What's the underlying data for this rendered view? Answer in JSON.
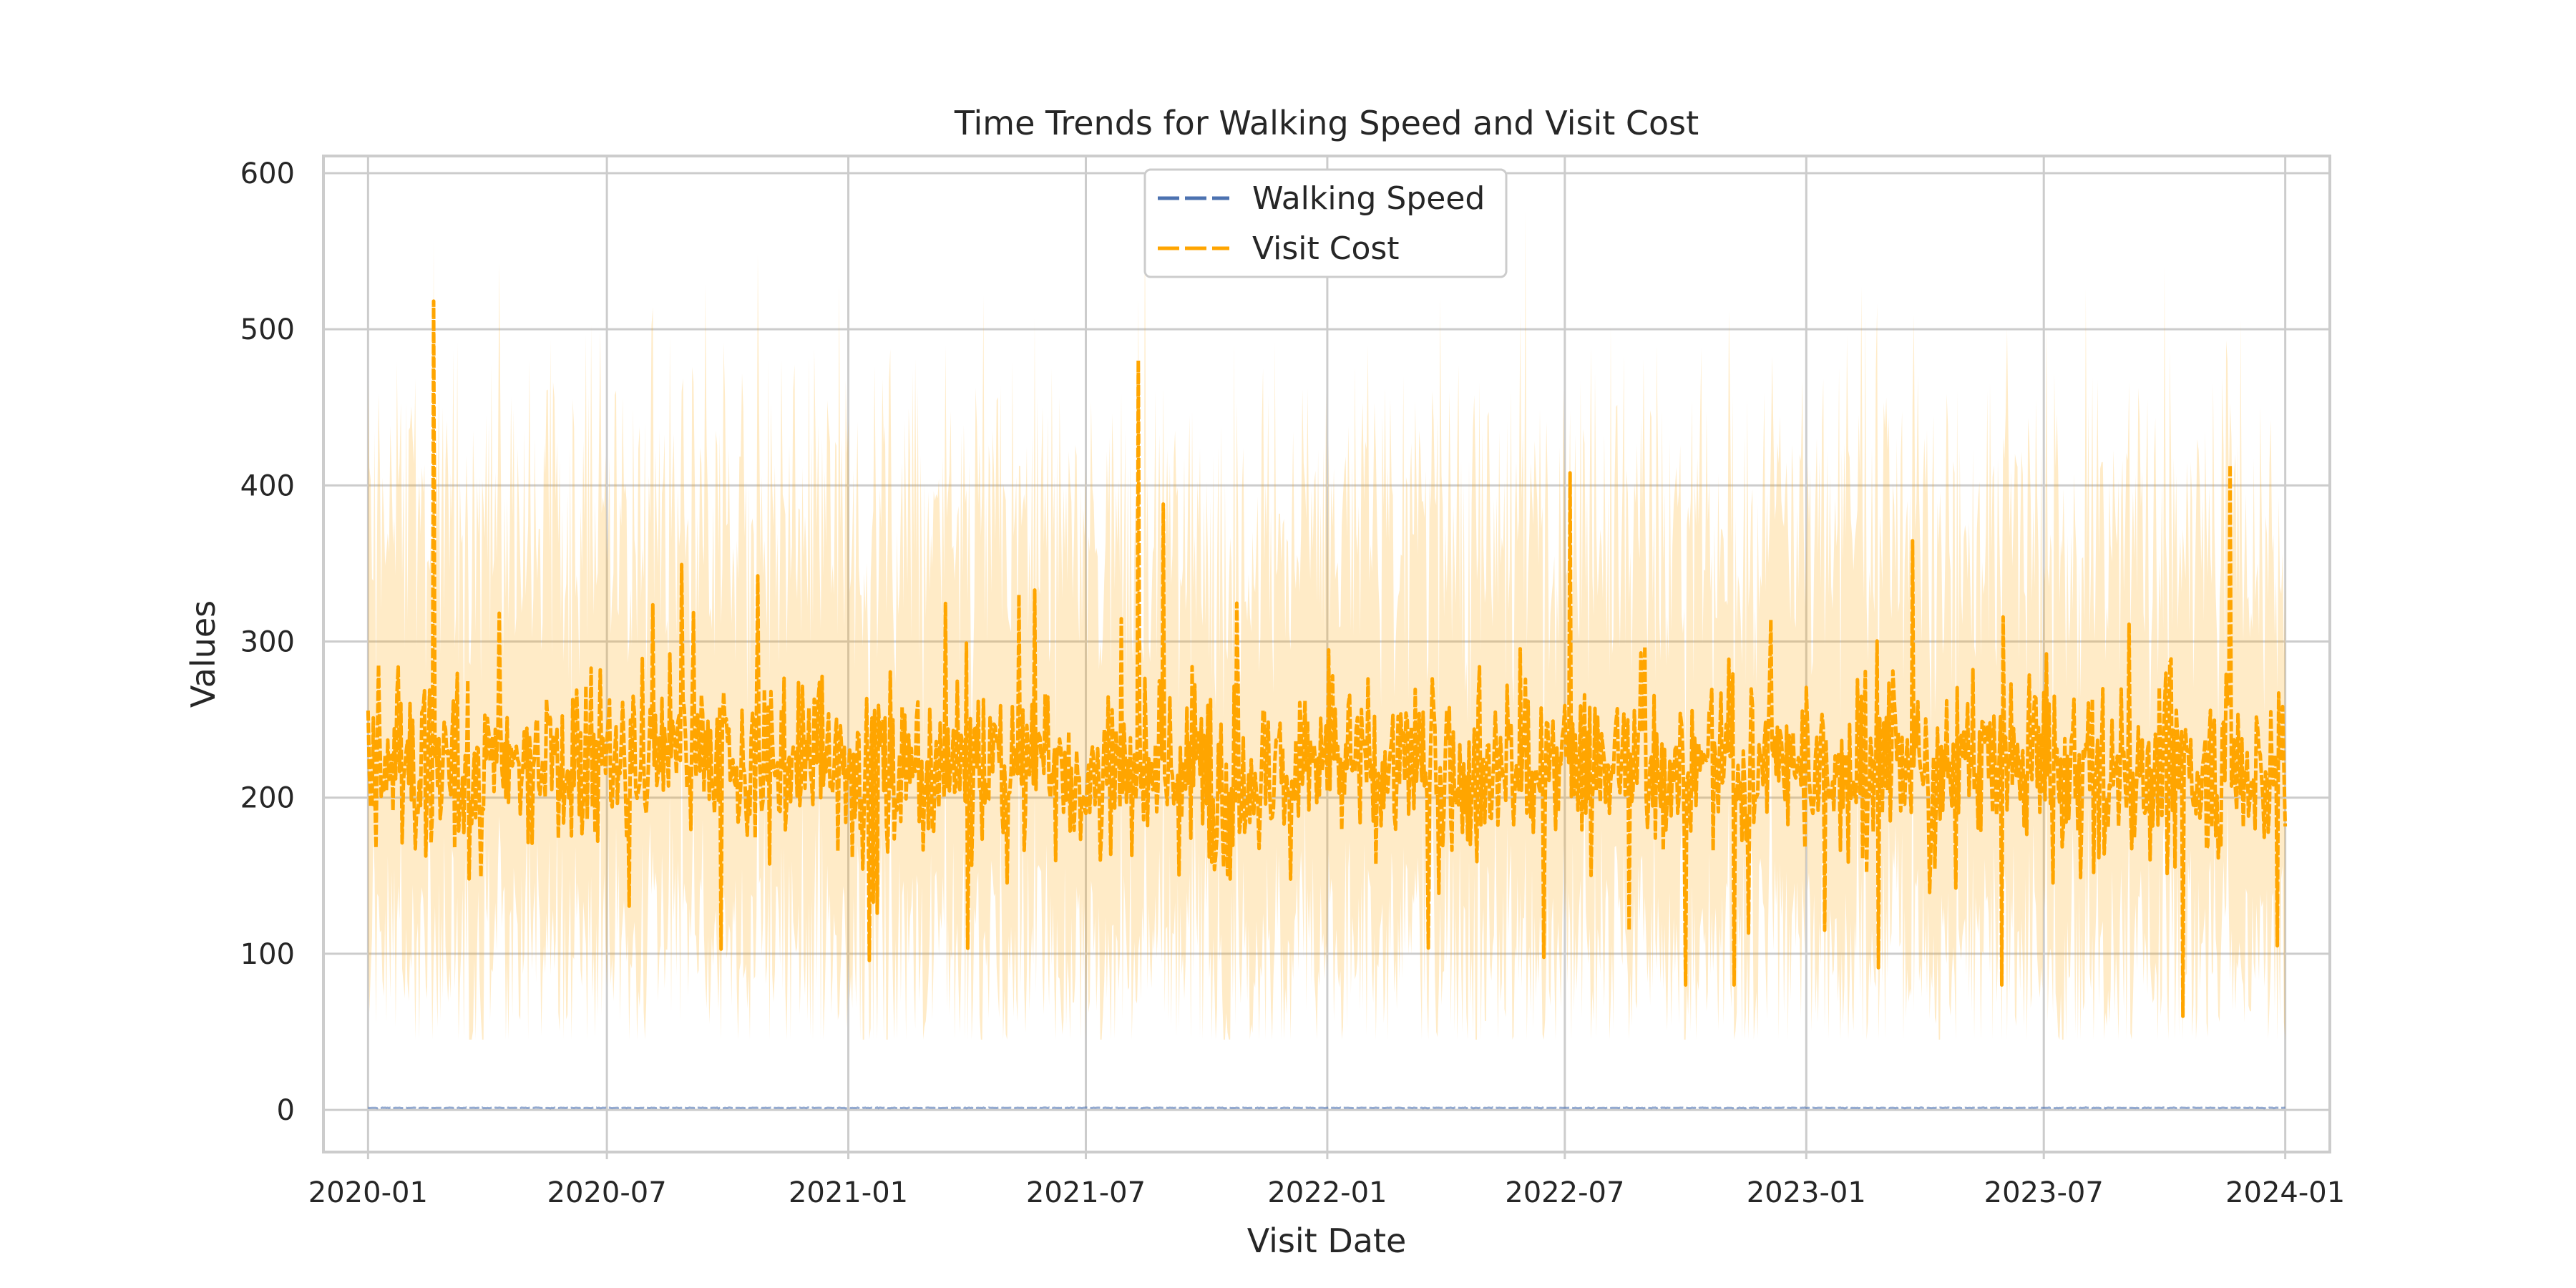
{
  "chart_data": {
    "type": "line",
    "title": "Time Trends for Walking Speed and Visit Cost",
    "xlabel": "Visit Date",
    "ylabel": "Values",
    "x_range": [
      "2019-11-28",
      "2024-02-04"
    ],
    "ylim": [
      -27,
      611
    ],
    "grid": true,
    "legend_position": "top-center",
    "x_ticks": [
      "2020-01",
      "2020-07",
      "2021-01",
      "2021-07",
      "2022-01",
      "2022-07",
      "2023-01",
      "2023-07",
      "2024-01"
    ],
    "y_ticks": [
      0,
      100,
      200,
      300,
      400,
      500,
      600
    ],
    "daily_date_range": [
      "2020-01-01",
      "2024-01-01"
    ],
    "series": [
      {
        "name": "Walking Speed",
        "color": "#4c72b0",
        "style": "dashed",
        "approx_level": 1.3,
        "approx_range": [
          0.5,
          2.0
        ]
      },
      {
        "name": "Visit Cost",
        "color": "#ffa500",
        "style": "dashed",
        "approx_mean": 220,
        "approx_band": [
          45,
          585
        ],
        "approx_mean_range": [
          60,
          518
        ],
        "highlighted_peaks": [
          {
            "x": "2020-02-20",
            "y": 518
          },
          {
            "x": "2021-08-10",
            "y": 480
          },
          {
            "x": "2023-11-20",
            "y": 413
          },
          {
            "x": "2022-07-05",
            "y": 408
          },
          {
            "x": "2023-10-15",
            "y": 60
          }
        ]
      }
    ]
  }
}
